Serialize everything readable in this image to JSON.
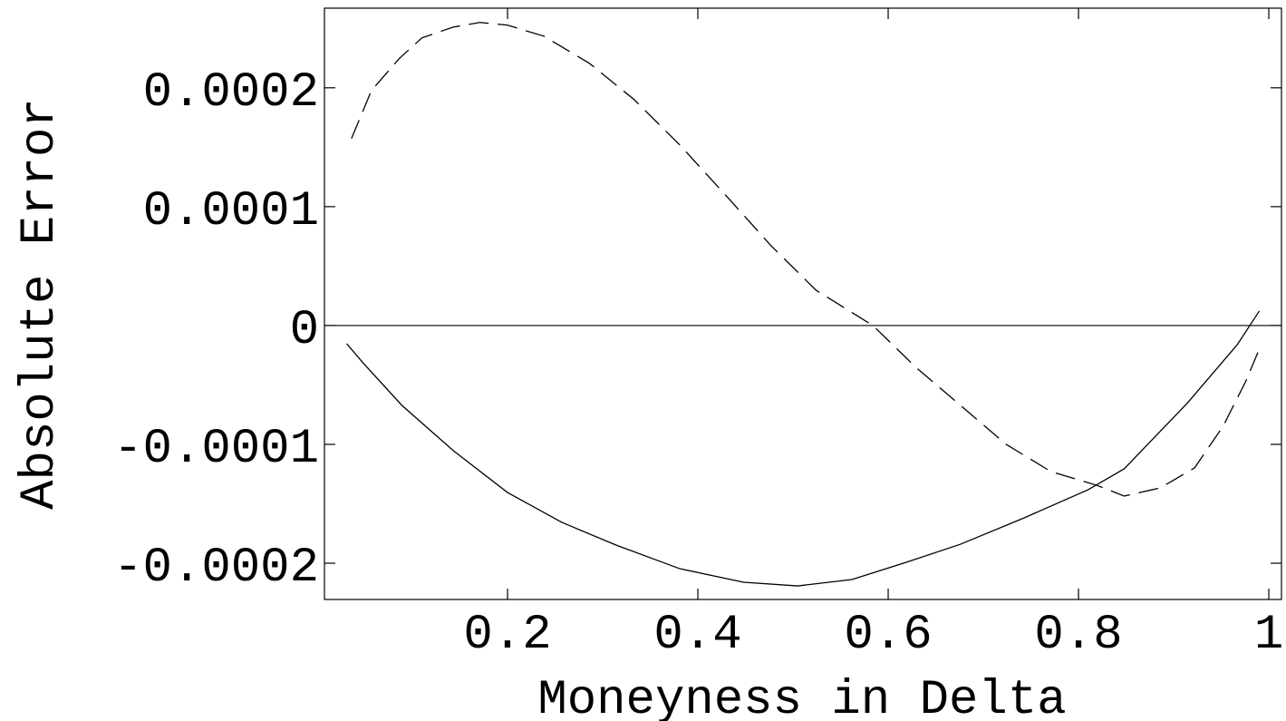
{
  "chart_data": {
    "type": "line",
    "xlabel": "Moneyness in Delta",
    "ylabel": "Absolute Error",
    "xlim": [
      0.0076,
      1.0133
    ],
    "ylim": [
      -0.0002305,
      0.000267
    ],
    "xticks": [
      0.2,
      0.4,
      0.6,
      0.8,
      1
    ],
    "yticks": [
      -0.0002,
      -0.0001,
      0,
      0.0001,
      0.0002
    ],
    "zero_line": true,
    "series": [
      {
        "color": "#000000",
        "dashed": false,
        "x": [
          0.031,
          0.048,
          0.089,
          0.143,
          0.2,
          0.257,
          0.314,
          0.381,
          0.448,
          0.505,
          0.562,
          0.619,
          0.676,
          0.743,
          0.81,
          0.848,
          0.914,
          0.967,
          0.99
        ],
        "values": [
          -1.53e-05,
          -3.13e-05,
          -6.72e-05,
          -0.0001053,
          -0.0001405,
          -0.0001656,
          -0.0001847,
          -0.0002046,
          -0.000216,
          -0.0002191,
          -0.0002137,
          -0.0001992,
          -0.000184,
          -0.0001618,
          -0.0001382,
          -0.0001206,
          -6.56e-05,
          -1.6e-05,
          1.22e-05
        ]
      },
      {
        "color": "#000000",
        "dashed": true,
        "x": [
          0.036,
          0.057,
          0.086,
          0.11,
          0.143,
          0.171,
          0.2,
          0.238,
          0.286,
          0.333,
          0.381,
          0.429,
          0.476,
          0.524,
          0.584,
          0.629,
          0.676,
          0.724,
          0.771,
          0.819,
          0.848,
          0.886,
          0.922,
          0.952,
          0.976,
          0.99
        ],
        "values": [
          0.0001573,
          0.0001977,
          0.0002244,
          0.000242,
          0.0002511,
          0.000255,
          0.0002527,
          0.0002435,
          0.0002206,
          0.0001901,
          0.0001519,
          0.0001099,
          6.79e-05,
          2.98e-05,
          0,
          -3.51e-05,
          -6.72e-05,
          -0.0001,
          -0.0001229,
          -0.0001344,
          -0.0001435,
          -0.0001366,
          -0.0001198,
          -8.47e-05,
          -4.66e-05,
          -1.98e-05
        ]
      }
    ]
  }
}
